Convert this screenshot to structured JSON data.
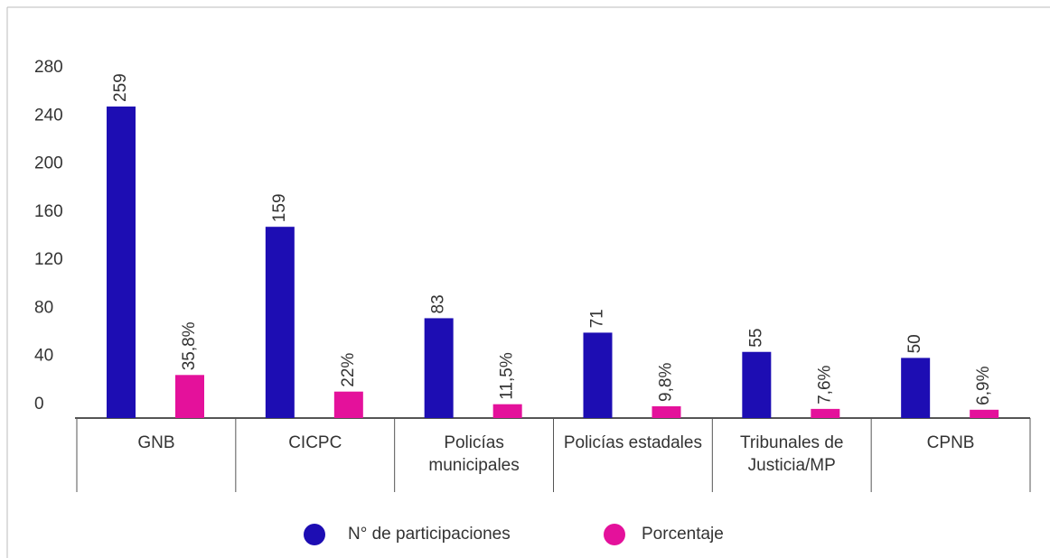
{
  "chart_data": {
    "type": "bar",
    "categories": [
      "GNB",
      "CICPC",
      "Policías municipales",
      "Policías estadales",
      "Tribunales de Justicia/MP",
      "CPNB"
    ],
    "series": [
      {
        "name": "N° de participaciones",
        "color": "#1d0db3",
        "values": [
          259,
          159,
          83,
          71,
          55,
          50
        ]
      },
      {
        "name": "Porcentaje",
        "color": "#e4119b",
        "values": [
          35.8,
          22,
          11.5,
          9.8,
          7.6,
          6.9
        ],
        "value_labels": [
          "35,8%",
          "22%",
          "11,5%",
          "9,8%",
          "7,6%",
          "6,9%"
        ]
      }
    ],
    "ylim": [
      0,
      280
    ],
    "yticks": [
      0,
      40,
      80,
      120,
      160,
      200,
      240,
      280
    ],
    "legend": "bottom"
  }
}
